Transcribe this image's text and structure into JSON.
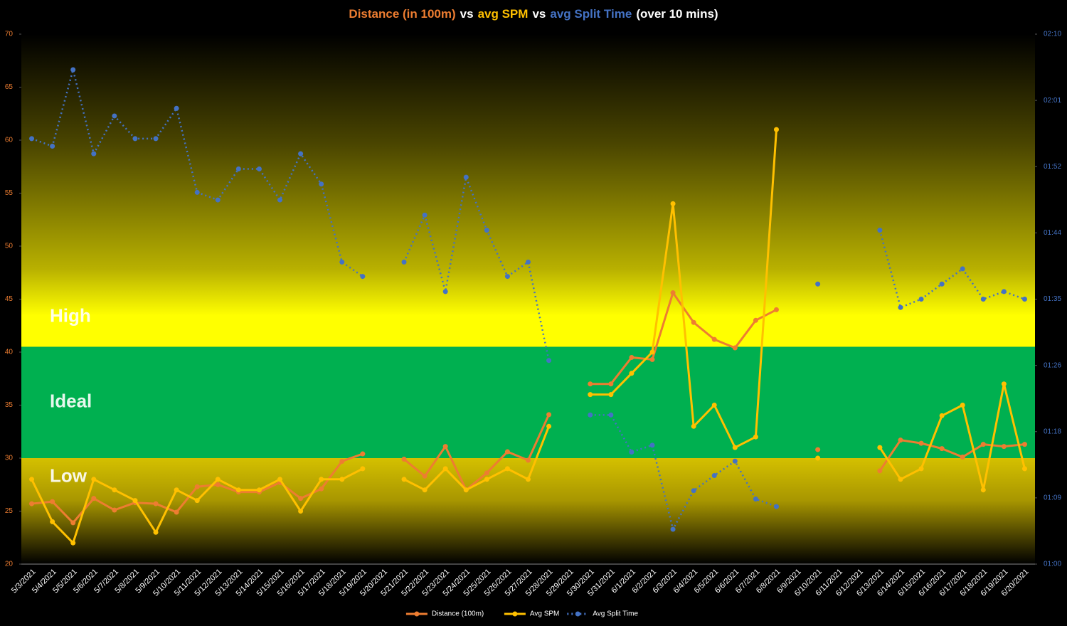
{
  "chart_data": {
    "type": "line",
    "title_parts": [
      {
        "text": "Distance (in 100m)",
        "color": "#ed7d31"
      },
      {
        "text": "vs",
        "color": "#ffffff"
      },
      {
        "text": "avg SPM",
        "color": "#ffc000"
      },
      {
        "text": "vs",
        "color": "#ffffff"
      },
      {
        "text": "avg Split Time",
        "color": "#4472c4"
      },
      {
        "text": "(over 10 mins)",
        "color": "#ffffff"
      }
    ],
    "categories": [
      "5/3/2021",
      "5/4/2021",
      "5/5/2021",
      "5/6/2021",
      "5/7/2021",
      "5/8/2021",
      "5/9/2021",
      "5/10/2021",
      "5/11/2021",
      "5/12/2021",
      "5/13/2021",
      "5/14/2021",
      "5/15/2021",
      "5/16/2021",
      "5/17/2021",
      "5/18/2021",
      "5/19/2021",
      "5/20/2021",
      "5/21/2021",
      "5/22/2021",
      "5/23/2021",
      "5/24/2021",
      "5/25/2021",
      "5/26/2021",
      "5/27/2021",
      "5/28/2021",
      "5/29/2021",
      "5/30/2021",
      "5/31/2021",
      "6/1/2021",
      "6/2/2021",
      "6/3/2021",
      "6/4/2021",
      "6/5/2021",
      "6/6/2021",
      "6/7/2021",
      "6/8/2021",
      "6/9/2021",
      "6/10/2021",
      "6/11/2021",
      "6/12/2021",
      "6/13/2021",
      "6/14/2021",
      "6/15/2021",
      "6/16/2021",
      "6/17/2021",
      "6/18/2021",
      "6/19/2021",
      "6/20/2021"
    ],
    "series": [
      {
        "name": "Distance (100m)",
        "color": "#ed7d31",
        "dashed": false,
        "values": [
          25.7,
          25.9,
          23.9,
          26.2,
          25.1,
          25.8,
          25.7,
          24.9,
          27.3,
          27.5,
          26.8,
          26.8,
          27.7,
          26.2,
          27.1,
          29.7,
          30.4,
          null,
          29.9,
          28.3,
          31.1,
          27.0,
          28.6,
          30.6,
          29.8,
          34.1,
          null,
          37.0,
          37.0,
          39.5,
          39.3,
          45.6,
          42.8,
          41.2,
          40.4,
          43.0,
          44.0,
          null,
          30.8,
          null,
          null,
          28.8,
          31.7,
          31.4,
          30.9,
          30.1,
          31.3,
          31.1,
          31.3
        ]
      },
      {
        "name": "Avg SPM",
        "color": "#ffc000",
        "dashed": false,
        "values": [
          28,
          24,
          22,
          28,
          27,
          26,
          23,
          27,
          26,
          28,
          27,
          27,
          28,
          25,
          28,
          28,
          29,
          null,
          28,
          27,
          29,
          27,
          28,
          29,
          28,
          33,
          null,
          36,
          36,
          38,
          40,
          54,
          33,
          35,
          31,
          32,
          61,
          null,
          30,
          null,
          null,
          31,
          28,
          29,
          34,
          35,
          27,
          37,
          29
        ]
      },
      {
        "name": "Avg Split Time",
        "color": "#4472c4",
        "dashed": true,
        "axis": "y2",
        "values": [
          116.2,
          115.2,
          125.3,
          114.2,
          119.2,
          116.2,
          116.2,
          120.2,
          109.1,
          108.1,
          112.2,
          112.2,
          108.1,
          114.2,
          110.2,
          99.9,
          98.0,
          null,
          99.9,
          106.1,
          96.0,
          111.1,
          104.1,
          98.0,
          99.9,
          86.9,
          null,
          79.7,
          79.7,
          74.8,
          75.7,
          64.6,
          69.7,
          71.7,
          73.6,
          68.6,
          67.6,
          null,
          97.0,
          null,
          null,
          104.1,
          93.9,
          95.0,
          97.0,
          99.0,
          95.0,
          96.0,
          95.0
        ]
      }
    ],
    "ylim": [
      20,
      70
    ],
    "yticks": [
      20,
      25,
      30,
      35,
      40,
      45,
      50,
      55,
      60,
      65,
      70
    ],
    "y2lim": [
      60,
      130
    ],
    "y2ticks": [
      {
        "value": 60,
        "label": "01:00"
      },
      {
        "value": 68.75,
        "label": "01:09"
      },
      {
        "value": 77.5,
        "label": "01:18"
      },
      {
        "value": 86.25,
        "label": "01:26"
      },
      {
        "value": 95,
        "label": "01:35"
      },
      {
        "value": 103.75,
        "label": "01:44"
      },
      {
        "value": 112.5,
        "label": "01:52"
      },
      {
        "value": 121.25,
        "label": "02:01"
      },
      {
        "value": 130,
        "label": "02:10"
      }
    ],
    "zones": [
      {
        "label": "High",
        "from": 40.5,
        "to": 70,
        "color": "#ffff00"
      },
      {
        "label": "Ideal",
        "from": 30,
        "to": 40.5,
        "color": "#00b050"
      },
      {
        "label": "Low",
        "from": 20,
        "to": 30,
        "color": "#d4c000"
      }
    ],
    "legend": "bottom"
  }
}
